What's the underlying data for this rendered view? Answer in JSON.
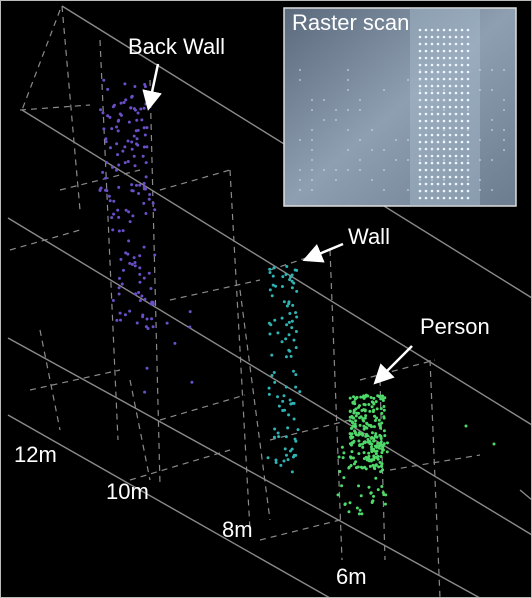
{
  "inset": {
    "title": "Raster scan"
  },
  "annotations": {
    "back_wall": "Back Wall",
    "wall": "Wall",
    "person": "Person"
  },
  "distances": [
    "12m",
    "10m",
    "8m",
    "6m"
  ]
}
